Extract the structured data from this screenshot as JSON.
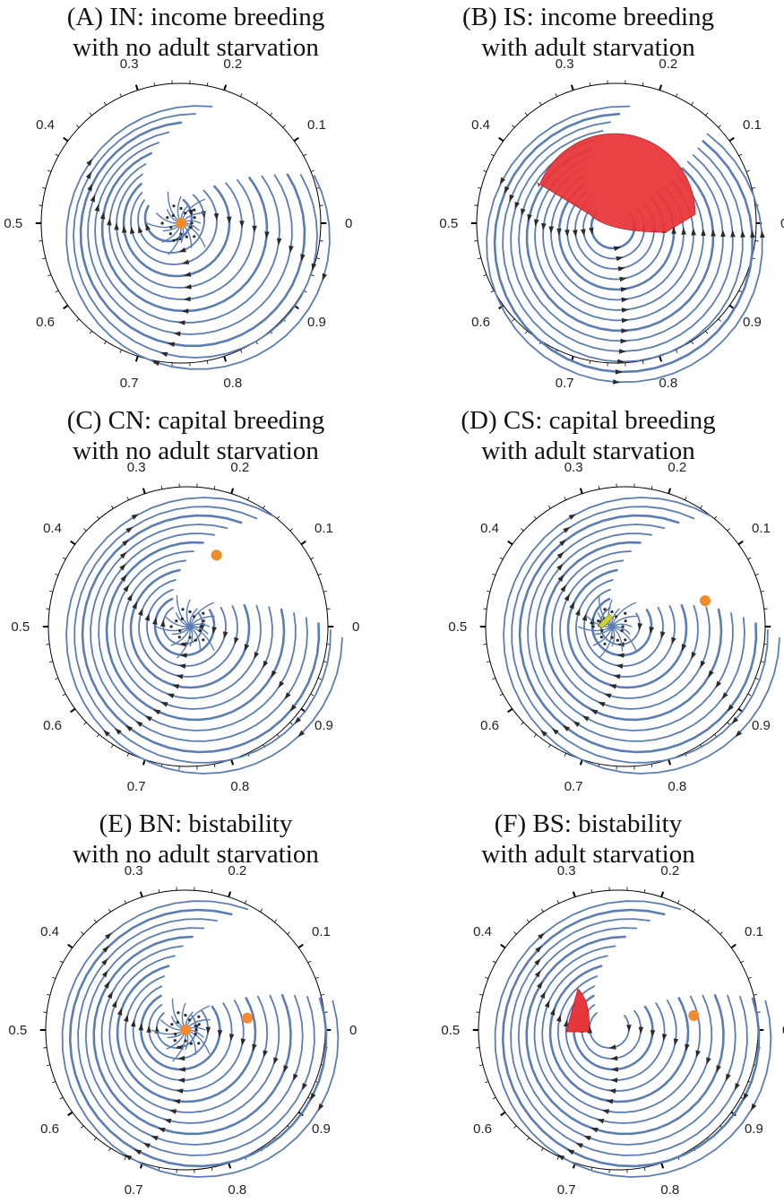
{
  "colors": {
    "stream": "#5b7db5",
    "arrow": "#2b2b2b",
    "equilibrium": "#f28a2e",
    "starvation_region": "#e8373a",
    "small_region": "#cdd23a",
    "axis": "#000000"
  },
  "chart_data": [
    {
      "type": "polar-streamplot",
      "title_line1": "(A) IN: income breeding",
      "title_line2": "with no adult starvation",
      "angle_ticks": [
        "0",
        "0.1",
        "0.2",
        "0.3",
        "0.4",
        "0.5",
        "0.6",
        "0.7",
        "0.8",
        "0.9"
      ],
      "equilibria": [
        {
          "angle": 0.5,
          "radius": 0.0
        }
      ],
      "regions": [],
      "grid": false
    },
    {
      "type": "polar-streamplot",
      "title_line1": "(B) IS: income breeding",
      "title_line2": "with adult starvation",
      "angle_ticks": [
        "0",
        "0.1",
        "0.2",
        "0.3",
        "0.4",
        "0.5",
        "0.6",
        "0.7",
        "0.8",
        "0.9"
      ],
      "equilibria": [],
      "regions": [
        {
          "kind": "starvation",
          "shape": "half-disc",
          "color": "#e8373a"
        }
      ],
      "grid": false
    },
    {
      "type": "polar-streamplot",
      "title_line1": "(C) CN: capital breeding",
      "title_line2": "with no adult starvation",
      "angle_ticks": [
        "0",
        "0.1",
        "0.2",
        "0.3",
        "0.4",
        "0.5",
        "0.6",
        "0.7",
        "0.8",
        "0.9"
      ],
      "equilibria": [
        {
          "angle": 0.19,
          "radius": 0.55
        }
      ],
      "regions": [],
      "grid": false
    },
    {
      "type": "polar-streamplot",
      "title_line1": "(D) CS: capital breeding",
      "title_line2": "with adult starvation",
      "angle_ticks": [
        "0",
        "0.1",
        "0.2",
        "0.3",
        "0.4",
        "0.5",
        "0.6",
        "0.7",
        "0.8",
        "0.9"
      ],
      "equilibria": [
        {
          "angle": 0.05,
          "radius": 0.6
        }
      ],
      "regions": [
        {
          "kind": "starvation",
          "shape": "sliver",
          "color": "#cdd23a"
        }
      ],
      "grid": false
    },
    {
      "type": "polar-streamplot",
      "title_line1": "(E) BN: bistability",
      "title_line2": "with no adult starvation",
      "angle_ticks": [
        "0",
        "0.1",
        "0.2",
        "0.3",
        "0.4",
        "0.5",
        "0.6",
        "0.7",
        "0.8",
        "0.9"
      ],
      "equilibria": [
        {
          "angle": 0.5,
          "radius": 0.0
        },
        {
          "angle": 0.03,
          "radius": 0.45
        }
      ],
      "regions": [],
      "grid": false
    },
    {
      "type": "polar-streamplot",
      "title_line1": "(F) BS: bistability",
      "title_line2": "with adult starvation",
      "angle_ticks": [
        "0",
        "0.1",
        "0.2",
        "0.3",
        "0.4",
        "0.5",
        "0.6",
        "0.7",
        "0.8",
        "0.9"
      ],
      "equilibria": [
        {
          "angle": 0.03,
          "radius": 0.55
        }
      ],
      "regions": [
        {
          "kind": "starvation",
          "shape": "wedge",
          "color": "#e8373a"
        }
      ],
      "grid": false
    }
  ]
}
